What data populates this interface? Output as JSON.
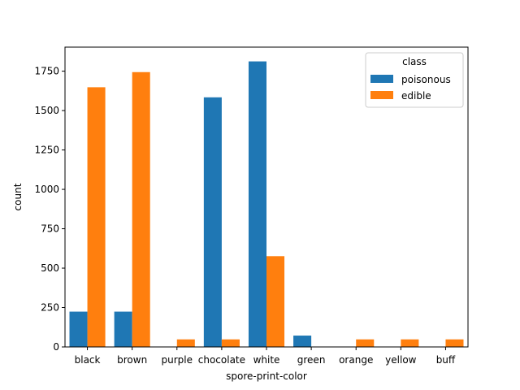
{
  "chart_data": {
    "type": "bar",
    "title": "",
    "xlabel": "spore-print-color",
    "ylabel": "count",
    "categories": [
      "black",
      "brown",
      "purple",
      "chocolate",
      "white",
      "green",
      "orange",
      "yellow",
      "buff"
    ],
    "series": [
      {
        "name": "poisonous",
        "color": "#1f77b4",
        "values": [
          224,
          224,
          0,
          1584,
          1812,
          72,
          0,
          0,
          0
        ]
      },
      {
        "name": "edible",
        "color": "#ff7f0e",
        "values": [
          1648,
          1744,
          48,
          48,
          576,
          0,
          48,
          48,
          48
        ]
      }
    ],
    "ylim": [
      0,
      1902.6
    ],
    "yticks": [
      0,
      250,
      500,
      750,
      1000,
      1250,
      1500,
      1750
    ],
    "legend": {
      "title": "class",
      "position": "top-right"
    },
    "grid": false
  }
}
